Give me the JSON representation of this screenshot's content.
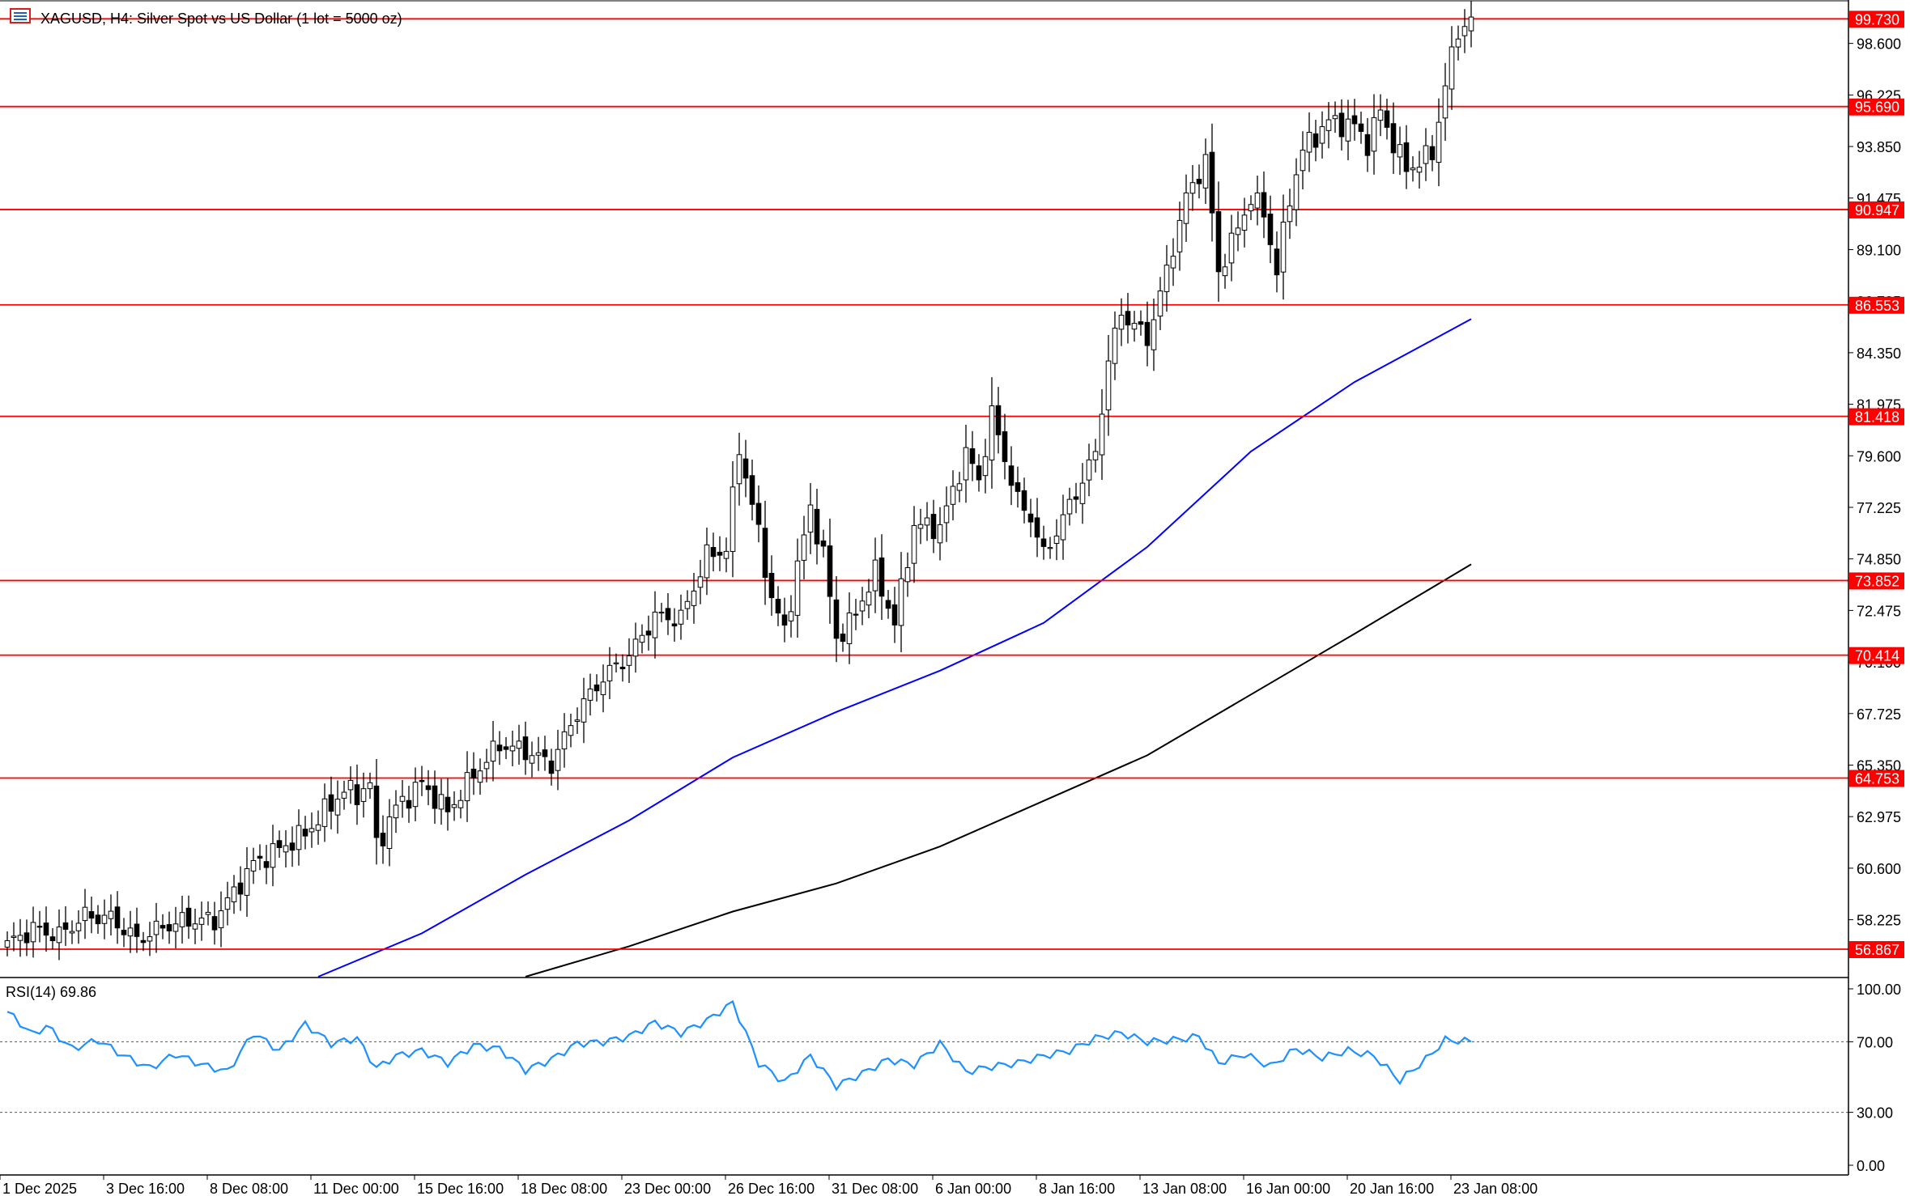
{
  "header": {
    "symbol_line": "XAGUSD, H4:  Silver Spot vs US Dollar (1 lot = 5000 oz)",
    "icon": "chart-window-icon"
  },
  "rsi_header": "RSI(14) 69.86",
  "colors": {
    "level_line": "#ff0000",
    "level_tag_bg": "#ff0000",
    "level_tag_text": "#ffffff",
    "ma_fast": "#0000ff",
    "ma_slow": "#000000",
    "rsi_line": "#1e90ff",
    "bull_body": "#ffffff",
    "bear_body": "#000000",
    "candle_outline": "#000000"
  },
  "chart_data": [
    {
      "type": "candlestick",
      "pane": "price",
      "symbol": "XAGUSD",
      "timeframe": "H4",
      "ylim": [
        55.6,
        100.6
      ],
      "y_ticks": [
        "98.600",
        "96.225",
        "93.850",
        "91.475",
        "89.100",
        "86.725",
        "84.350",
        "81.975",
        "79.600",
        "77.225",
        "74.850",
        "72.475",
        "70.100",
        "67.725",
        "65.350",
        "62.975",
        "60.600",
        "58.225"
      ],
      "x_tick_labels": [
        "1 Dec 2025",
        "3 Dec 16:00",
        "8 Dec 08:00",
        "11 Dec 00:00",
        "15 Dec 16:00",
        "18 Dec 08:00",
        "23 Dec 00:00",
        "26 Dec 16:00",
        "31 Dec 08:00",
        "6 Jan 00:00",
        "8 Jan 16:00",
        "13 Jan 08:00",
        "16 Jan 00:00",
        "20 Jan 16:00",
        "23 Jan 08:00"
      ],
      "x_tick_bar_index": [
        0,
        16,
        32,
        48,
        64,
        80,
        96,
        112,
        128,
        144,
        160,
        176,
        192,
        208,
        224
      ],
      "horizontal_levels": [
        "99.730",
        "95.690",
        "90.947",
        "86.553",
        "81.418",
        "73.852",
        "70.414",
        "64.753",
        "56.867"
      ],
      "anchor_closes": [
        [
          0,
          57.1
        ],
        [
          4,
          57.8
        ],
        [
          8,
          57.5
        ],
        [
          12,
          58.4
        ],
        [
          16,
          58.3
        ],
        [
          20,
          57.3
        ],
        [
          24,
          57.9
        ],
        [
          28,
          58.2
        ],
        [
          32,
          58.2
        ],
        [
          38,
          60.8
        ],
        [
          46,
          62.2
        ],
        [
          52,
          64.2
        ],
        [
          54,
          64.0
        ],
        [
          56,
          64.5
        ],
        [
          57,
          61.6
        ],
        [
          60,
          63.4
        ],
        [
          64,
          64.5
        ],
        [
          68,
          63.2
        ],
        [
          72,
          64.9
        ],
        [
          76,
          66.3
        ],
        [
          80,
          66.0
        ],
        [
          84,
          65.4
        ],
        [
          88,
          67.8
        ],
        [
          92,
          69.4
        ],
        [
          96,
          70.4
        ],
        [
          100,
          72.2
        ],
        [
          104,
          72.1
        ],
        [
          108,
          75.0
        ],
        [
          111,
          75.3
        ],
        [
          113,
          80.0
        ],
        [
          116,
          76.0
        ],
        [
          118,
          73.0
        ],
        [
          120,
          71.5
        ],
        [
          122,
          74.5
        ],
        [
          124,
          77.2
        ],
        [
          126,
          75.0
        ],
        [
          128,
          71.2
        ],
        [
          130,
          71.8
        ],
        [
          134,
          74.2
        ],
        [
          137,
          71.9
        ],
        [
          140,
          76.4
        ],
        [
          144,
          76.3
        ],
        [
          148,
          79.7
        ],
        [
          150,
          78.5
        ],
        [
          152,
          81.5
        ],
        [
          154,
          79.5
        ],
        [
          156,
          77.5
        ],
        [
          158,
          76.8
        ],
        [
          160,
          75.0
        ],
        [
          164,
          77.3
        ],
        [
          168,
          79.7
        ],
        [
          170,
          84.0
        ],
        [
          172,
          86.2
        ],
        [
          176,
          85.0
        ],
        [
          178,
          87.0
        ],
        [
          182,
          91.5
        ],
        [
          185,
          93.2
        ],
        [
          187,
          88.1
        ],
        [
          189,
          89.4
        ],
        [
          192,
          91.5
        ],
        [
          194,
          90.8
        ],
        [
          196,
          88.1
        ],
        [
          198,
          91.5
        ],
        [
          200,
          93.7
        ],
        [
          204,
          95.0
        ],
        [
          208,
          94.8
        ],
        [
          210,
          94.0
        ],
        [
          212,
          95.5
        ],
        [
          214,
          94.0
        ],
        [
          216,
          92.8
        ],
        [
          220,
          93.5
        ],
        [
          222,
          96.7
        ],
        [
          224,
          99.2
        ],
        [
          226,
          99.7
        ]
      ],
      "series_ma": [
        {
          "name": "",
          "color": "#0000ff",
          "x": [
            48,
            64,
            80,
            96,
            112,
            128,
            144,
            160,
            176,
            192,
            208,
            226
          ],
          "values": [
            55.6,
            57.6,
            60.3,
            62.8,
            65.7,
            67.8,
            69.7,
            71.9,
            75.4,
            79.8,
            83.0,
            85.9
          ]
        },
        {
          "name": "",
          "color": "#000000",
          "x": [
            80,
            96,
            112,
            128,
            144,
            160,
            176,
            192,
            208,
            226
          ],
          "values": [
            55.6,
            57.0,
            58.6,
            59.9,
            61.6,
            63.7,
            65.8,
            68.6,
            71.4,
            74.6
          ]
        }
      ]
    },
    {
      "type": "line",
      "pane": "indicator",
      "name": "RSI(14)",
      "ylim": [
        0,
        100
      ],
      "y_ticks": [
        "100.00",
        "70.00",
        "30.00",
        "0.00"
      ],
      "dotted_levels": [
        70,
        30
      ],
      "x": [
        0,
        4,
        6,
        10,
        14,
        18,
        22,
        26,
        30,
        34,
        38,
        42,
        46,
        50,
        54,
        57,
        60,
        64,
        68,
        72,
        76,
        80,
        84,
        88,
        92,
        96,
        100,
        104,
        108,
        112,
        116,
        120,
        124,
        128,
        132,
        136,
        140,
        144,
        148,
        152,
        156,
        160,
        164,
        168,
        172,
        176,
        180,
        184,
        187,
        191,
        195,
        199,
        203,
        207,
        211,
        215,
        219,
        222,
        226
      ],
      "values": [
        87,
        74,
        79,
        66,
        71,
        62,
        55,
        63,
        57,
        53,
        75,
        65,
        80,
        69,
        72,
        55,
        62,
        65,
        58,
        68,
        66,
        54,
        60,
        69,
        70,
        73,
        81,
        75,
        82,
        92,
        58,
        47,
        62,
        45,
        52,
        60,
        57,
        69,
        53,
        56,
        58,
        62,
        65,
        72,
        75,
        70,
        71,
        73,
        58,
        63,
        56,
        66,
        61,
        65,
        62,
        48,
        60,
        71,
        70
      ]
    }
  ]
}
